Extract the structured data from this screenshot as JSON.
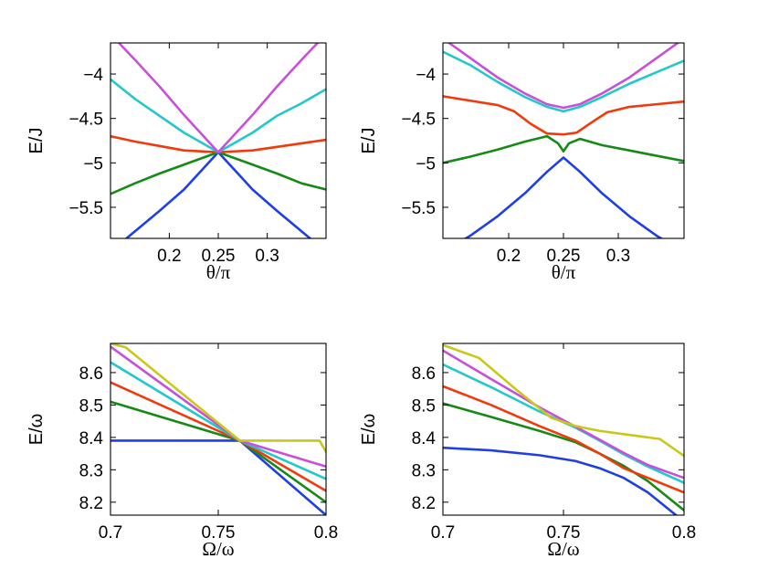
{
  "figure_title": "",
  "colors": {
    "blue": "#1f3fe6",
    "green": "#168a16",
    "red": "#f03a0c",
    "cyan": "#22c8cc",
    "magenta": "#c84fd8",
    "yellow": "#c8c81a"
  },
  "chart_data": [
    {
      "type": "line",
      "xlabel": "θ/π",
      "ylabel": "E/J",
      "xlim": [
        0.14,
        0.36
      ],
      "ylim": [
        -5.85,
        -3.65
      ],
      "xticks": [
        0.2,
        0.25,
        0.3
      ],
      "xtick_labels": [
        "0.2",
        "0.25",
        "0.3"
      ],
      "yticks": [
        -4,
        -4.5,
        -5,
        -5.5
      ],
      "ytick_labels": [
        "−4",
        "−4.5",
        "−5",
        "−5.5"
      ],
      "series": [
        {
          "name": "blue",
          "color": "#1f3fe6",
          "x": [
            0.14,
            0.165,
            0.19,
            0.215,
            0.25,
            0.285,
            0.31,
            0.335,
            0.36
          ],
          "y": [
            -6.0,
            -5.77,
            -5.54,
            -5.3,
            -4.88,
            -5.3,
            -5.54,
            -5.77,
            -6.0
          ]
        },
        {
          "name": "green",
          "color": "#168a16",
          "x": [
            0.14,
            0.165,
            0.19,
            0.215,
            0.25,
            0.285,
            0.31,
            0.335,
            0.36
          ],
          "y": [
            -5.35,
            -5.23,
            -5.12,
            -5.02,
            -4.88,
            -5.02,
            -5.12,
            -5.23,
            -5.3
          ]
        },
        {
          "name": "red",
          "color": "#f03a0c",
          "x": [
            0.14,
            0.165,
            0.19,
            0.215,
            0.25,
            0.285,
            0.31,
            0.335,
            0.36
          ],
          "y": [
            -4.7,
            -4.76,
            -4.81,
            -4.86,
            -4.88,
            -4.86,
            -4.82,
            -4.78,
            -4.74
          ]
        },
        {
          "name": "cyan",
          "color": "#22c8cc",
          "x": [
            0.14,
            0.165,
            0.19,
            0.215,
            0.25,
            0.285,
            0.31,
            0.335,
            0.36
          ],
          "y": [
            -4.06,
            -4.28,
            -4.47,
            -4.66,
            -4.88,
            -4.66,
            -4.47,
            -4.33,
            -4.17
          ]
        },
        {
          "name": "magenta",
          "color": "#c84fd8",
          "x": [
            0.14,
            0.165,
            0.19,
            0.215,
            0.25,
            0.285,
            0.31,
            0.335,
            0.36
          ],
          "y": [
            -3.55,
            -3.84,
            -4.14,
            -4.46,
            -4.88,
            -4.46,
            -4.14,
            -3.84,
            -3.55
          ]
        }
      ]
    },
    {
      "type": "line",
      "xlabel": "θ/π",
      "ylabel": "E/J",
      "xlim": [
        0.14,
        0.36
      ],
      "ylim": [
        -5.85,
        -3.65
      ],
      "xticks": [
        0.2,
        0.25,
        0.3
      ],
      "xtick_labels": [
        "0.2",
        "0.25",
        "0.3"
      ],
      "yticks": [
        -4,
        -4.5,
        -5,
        -5.5
      ],
      "ytick_labels": [
        "−4",
        "−4.5",
        "−5",
        "−5.5"
      ],
      "series": [
        {
          "name": "blue",
          "color": "#1f3fe6",
          "x": [
            0.14,
            0.165,
            0.19,
            0.215,
            0.235,
            0.25,
            0.265,
            0.285,
            0.31,
            0.335,
            0.36
          ],
          "y": [
            -6.0,
            -5.82,
            -5.6,
            -5.34,
            -5.1,
            -4.94,
            -5.1,
            -5.34,
            -5.6,
            -5.82,
            -6.0
          ]
        },
        {
          "name": "green",
          "color": "#168a16",
          "x": [
            0.14,
            0.165,
            0.19,
            0.215,
            0.235,
            0.245,
            0.25,
            0.255,
            0.265,
            0.285,
            0.31,
            0.335,
            0.36
          ],
          "y": [
            -5.0,
            -4.93,
            -4.85,
            -4.76,
            -4.7,
            -4.78,
            -4.87,
            -4.78,
            -4.73,
            -4.8,
            -4.86,
            -4.92,
            -4.98
          ]
        },
        {
          "name": "red",
          "color": "#f03a0c",
          "x": [
            0.14,
            0.165,
            0.19,
            0.205,
            0.22,
            0.235,
            0.25,
            0.262,
            0.275,
            0.29,
            0.31,
            0.335,
            0.36
          ],
          "y": [
            -4.25,
            -4.3,
            -4.35,
            -4.42,
            -4.56,
            -4.67,
            -4.68,
            -4.66,
            -4.55,
            -4.43,
            -4.37,
            -4.34,
            -4.31
          ]
        },
        {
          "name": "cyan",
          "color": "#22c8cc",
          "x": [
            0.14,
            0.165,
            0.19,
            0.215,
            0.235,
            0.25,
            0.265,
            0.285,
            0.31,
            0.335,
            0.36
          ],
          "y": [
            -3.75,
            -3.9,
            -4.09,
            -4.26,
            -4.37,
            -4.42,
            -4.37,
            -4.26,
            -4.11,
            -3.98,
            -3.85
          ]
        },
        {
          "name": "magenta",
          "color": "#c84fd8",
          "x": [
            0.14,
            0.165,
            0.19,
            0.215,
            0.235,
            0.25,
            0.265,
            0.285,
            0.31,
            0.335,
            0.36
          ],
          "y": [
            -3.6,
            -3.82,
            -4.04,
            -4.22,
            -4.34,
            -4.38,
            -4.34,
            -4.22,
            -4.04,
            -3.82,
            -3.6
          ]
        }
      ]
    },
    {
      "type": "line",
      "xlabel": "Ω/ω",
      "ylabel": "E/ω",
      "xlim": [
        0.7,
        0.8
      ],
      "ylim": [
        8.16,
        8.69
      ],
      "xticks": [
        0.7,
        0.75,
        0.8
      ],
      "xtick_labels": [
        "0.7",
        "0.75",
        "0.8"
      ],
      "yticks": [
        8.6,
        8.5,
        8.4,
        8.3,
        8.2
      ],
      "ytick_labels": [
        "8.6",
        "8.5",
        "8.4",
        "8.3",
        "8.2"
      ],
      "series": [
        {
          "name": "blue",
          "color": "#1f3fe6",
          "x": [
            0.7,
            0.76,
            0.8
          ],
          "y": [
            8.39,
            8.39,
            8.16
          ]
        },
        {
          "name": "green",
          "color": "#168a16",
          "x": [
            0.7,
            0.76,
            0.8
          ],
          "y": [
            8.51,
            8.39,
            8.2
          ]
        },
        {
          "name": "red",
          "color": "#f03a0c",
          "x": [
            0.7,
            0.76,
            0.8
          ],
          "y": [
            8.57,
            8.39,
            8.235
          ]
        },
        {
          "name": "cyan",
          "color": "#22c8cc",
          "x": [
            0.7,
            0.76,
            0.8
          ],
          "y": [
            8.632,
            8.39,
            8.272
          ]
        },
        {
          "name": "magenta",
          "color": "#c84fd8",
          "x": [
            0.7,
            0.76,
            0.8
          ],
          "y": [
            8.68,
            8.39,
            8.31
          ]
        },
        {
          "name": "yellow",
          "color": "#c8c81a",
          "x": [
            0.7,
            0.707,
            0.76,
            0.797,
            0.8
          ],
          "y": [
            8.69,
            8.678,
            8.39,
            8.39,
            8.355
          ]
        }
      ]
    },
    {
      "type": "line",
      "xlabel": "Ω/ω",
      "ylabel": "E/ω",
      "xlim": [
        0.7,
        0.8
      ],
      "ylim": [
        8.16,
        8.69
      ],
      "xticks": [
        0.7,
        0.75,
        0.8
      ],
      "xtick_labels": [
        "0.7",
        "0.75",
        "0.8"
      ],
      "yticks": [
        8.6,
        8.5,
        8.4,
        8.3,
        8.2
      ],
      "ytick_labels": [
        "8.6",
        "8.5",
        "8.4",
        "8.3",
        "8.2"
      ],
      "series": [
        {
          "name": "blue",
          "color": "#1f3fe6",
          "x": [
            0.7,
            0.72,
            0.74,
            0.755,
            0.765,
            0.775,
            0.785,
            0.8
          ],
          "y": [
            8.368,
            8.36,
            8.345,
            8.327,
            8.305,
            8.275,
            8.23,
            8.14
          ]
        },
        {
          "name": "green",
          "color": "#168a16",
          "x": [
            0.7,
            0.72,
            0.74,
            0.755,
            0.765,
            0.775,
            0.785,
            0.8
          ],
          "y": [
            8.505,
            8.463,
            8.42,
            8.385,
            8.35,
            8.312,
            8.265,
            8.175
          ]
        },
        {
          "name": "red",
          "color": "#f03a0c",
          "x": [
            0.7,
            0.72,
            0.74,
            0.755,
            0.765,
            0.775,
            0.785,
            0.8
          ],
          "y": [
            8.558,
            8.5,
            8.435,
            8.39,
            8.35,
            8.305,
            8.275,
            8.23
          ]
        },
        {
          "name": "cyan",
          "color": "#22c8cc",
          "x": [
            0.7,
            0.72,
            0.74,
            0.755,
            0.765,
            0.775,
            0.785,
            0.8
          ],
          "y": [
            8.625,
            8.555,
            8.48,
            8.43,
            8.39,
            8.348,
            8.31,
            8.26
          ]
        },
        {
          "name": "magenta",
          "color": "#c84fd8",
          "x": [
            0.7,
            0.72,
            0.74,
            0.755,
            0.765,
            0.775,
            0.785,
            0.8
          ],
          "y": [
            8.668,
            8.58,
            8.493,
            8.433,
            8.393,
            8.352,
            8.315,
            8.275
          ]
        },
        {
          "name": "yellow",
          "color": "#c8c81a",
          "x": [
            0.7,
            0.715,
            0.73,
            0.745,
            0.755,
            0.765,
            0.775,
            0.79,
            0.8
          ],
          "y": [
            8.685,
            8.645,
            8.55,
            8.46,
            8.435,
            8.42,
            8.41,
            8.395,
            8.343
          ]
        }
      ]
    }
  ]
}
